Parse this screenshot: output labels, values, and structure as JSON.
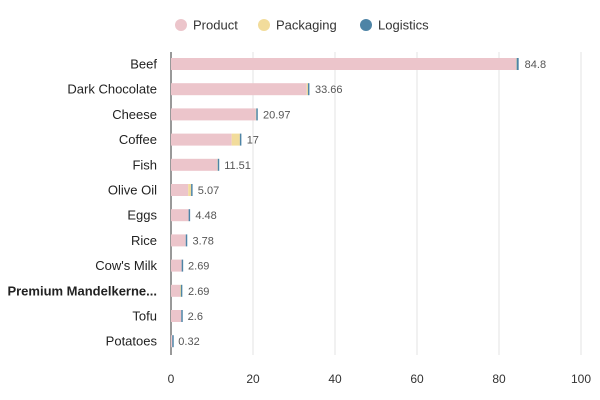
{
  "chart_data": {
    "type": "bar",
    "orientation": "horizontal",
    "stacked": true,
    "categories": [
      "Beef",
      "Dark Chocolate",
      "Cheese",
      "Coffee",
      "Fish",
      "Olive Oil",
      "Eggs",
      "Rice",
      "Cow's Milk",
      "Premium Mandelkerne...",
      "Tofu",
      "Potatoes"
    ],
    "highlighted_category": "Premium Mandelkerne...",
    "series": [
      {
        "name": "Product",
        "color": "#ecc5cb",
        "values": [
          84.2,
          33.1,
          20.7,
          14.8,
          11.3,
          4.2,
          4.3,
          3.6,
          2.6,
          2.2,
          2.5,
          0.3
        ]
      },
      {
        "name": "Packaging",
        "color": "#f2dc9b",
        "values": [
          0.1,
          0.3,
          0.1,
          2.0,
          0.1,
          0.7,
          0.0,
          0.0,
          0.0,
          0.2,
          0.0,
          0.0
        ]
      },
      {
        "name": "Logistics",
        "color": "#4e84a6",
        "values": [
          0.5,
          0.26,
          0.17,
          0.2,
          0.11,
          0.17,
          0.18,
          0.18,
          0.09,
          0.29,
          0.1,
          0.02
        ]
      }
    ],
    "totals": [
      "84.8",
      "33.66",
      "20.97",
      "17",
      "11.51",
      "5.07",
      "4.48",
      "3.78",
      "2.69",
      "2.69",
      "2.6",
      "0.32"
    ],
    "x_ticks": [
      "0",
      "20",
      "40",
      "60",
      "80",
      "100"
    ],
    "xlim": [
      0,
      100
    ],
    "grid": true,
    "legend_position": "top-center"
  }
}
